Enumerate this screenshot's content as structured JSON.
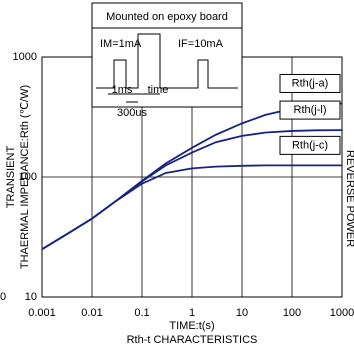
{
  "chart_data": {
    "type": "line",
    "title": "Rth-t CHARACTERISTICS",
    "x_label": "TIME:t(s)",
    "y_label": [
      "TRANSIENT",
      "THAERMAL IMPEDANCE:Rth (℃/W)"
    ],
    "right_label": "REVERSE POWER",
    "left_fragment": "0",
    "inset": {
      "title": "Mounted on epoxy board",
      "im": "IM=1mA",
      "if": "IF=10mA",
      "t1": "1ms",
      "t2": "time",
      "t3": "300us"
    },
    "x": [
      0.001,
      0.003,
      0.01,
      0.03,
      0.1,
      0.3,
      1,
      3,
      10,
      30,
      100,
      300,
      1000
    ],
    "series": [
      {
        "name": "Rth(j-a)",
        "color": "#1a237e",
        "values": [
          25,
          33,
          45,
          63,
          93,
          130,
          175,
          225,
          280,
          330,
          370,
          395,
          410
        ]
      },
      {
        "name": "Rth(j-l)",
        "color": "#1a237e",
        "values": [
          25,
          33,
          45,
          63,
          92,
          125,
          160,
          195,
          220,
          235,
          242,
          245,
          246
        ]
      },
      {
        "name": "Rth(j-c)",
        "color": "#1a237e",
        "values": [
          25,
          33,
          45,
          63,
          88,
          108,
          118,
          122,
          124,
          125,
          125,
          125,
          125
        ]
      }
    ],
    "xlim": [
      0.001,
      1000
    ],
    "ylim": [
      10,
      1000
    ],
    "xticks": [
      0.001,
      0.01,
      0.1,
      1,
      10,
      100,
      1000
    ],
    "yticks": [
      10,
      100,
      1000
    ],
    "xlog": true,
    "ylog": true,
    "grid": true
  }
}
